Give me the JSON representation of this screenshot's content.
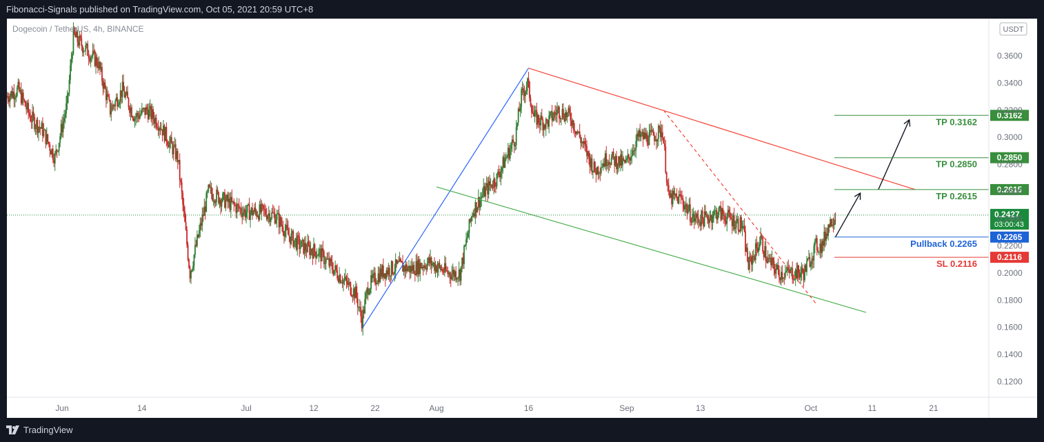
{
  "header": {
    "published": "Fibonacci-Signals published on TradingView.com, Oct 05, 2021 20:59 UTC+8"
  },
  "symbol": {
    "name": "Dogecoin / TetherUS, 4h, BINANCE"
  },
  "currency": "USDT",
  "footer": {
    "brand": "TradingView"
  },
  "colors": {
    "background": "#ffffff",
    "up": "#26a69a",
    "up_candle": "#2e7d32",
    "down": "#c62828",
    "tp": "#388e3c",
    "pullback": "#1e63d6",
    "sl": "#e53935",
    "trend_blue": "#2962ff",
    "channel_red": "#f44336",
    "channel_green": "#4caf50",
    "last_price": "#1b8a3c"
  },
  "chart_data": {
    "type": "candlestick",
    "title": "Dogecoin / TetherUS, 4h, BINANCE",
    "y_axis": {
      "ticks": [
        "0.3600",
        "0.3400",
        "0.3200",
        "0.3000",
        "0.2800",
        "0.2600",
        "0.2400",
        "0.2200",
        "0.2000",
        "0.1800",
        "0.1600",
        "0.1400",
        "0.1200"
      ],
      "range": [
        0.1085,
        0.3875
      ]
    },
    "x_axis": {
      "ticks": [
        {
          "label": "Jun",
          "date": "2021-06-01"
        },
        {
          "label": "14",
          "date": "2021-06-14"
        },
        {
          "label": "Jul",
          "date": "2021-07-01"
        },
        {
          "label": "12",
          "date": "2021-07-12"
        },
        {
          "label": "22",
          "date": "2021-07-22"
        },
        {
          "label": "Aug",
          "date": "2021-08-01"
        },
        {
          "label": "16",
          "date": "2021-08-16"
        },
        {
          "label": "Sep",
          "date": "2021-09-01"
        },
        {
          "label": "13",
          "date": "2021-09-13"
        },
        {
          "label": "Oct",
          "date": "2021-10-01"
        },
        {
          "label": "11",
          "date": "2021-10-11"
        },
        {
          "label": "21",
          "date": "2021-10-21"
        }
      ],
      "range": [
        "2021-05-23",
        "2021-10-30"
      ]
    },
    "price_path": [
      {
        "date": "2021-05-23",
        "price": 0.33
      },
      {
        "date": "2021-05-25",
        "price": 0.335
      },
      {
        "date": "2021-05-27",
        "price": 0.315
      },
      {
        "date": "2021-05-29",
        "price": 0.305
      },
      {
        "date": "2021-05-31",
        "price": 0.285
      },
      {
        "date": "2021-06-02",
        "price": 0.325
      },
      {
        "date": "2021-06-03",
        "price": 0.375
      },
      {
        "date": "2021-06-05",
        "price": 0.365
      },
      {
        "date": "2021-06-07",
        "price": 0.355
      },
      {
        "date": "2021-06-09",
        "price": 0.32
      },
      {
        "date": "2021-06-11",
        "price": 0.335
      },
      {
        "date": "2021-06-13",
        "price": 0.315
      },
      {
        "date": "2021-06-15",
        "price": 0.32
      },
      {
        "date": "2021-06-17",
        "price": 0.31
      },
      {
        "date": "2021-06-20",
        "price": 0.285
      },
      {
        "date": "2021-06-22",
        "price": 0.2
      },
      {
        "date": "2021-06-23",
        "price": 0.22
      },
      {
        "date": "2021-06-25",
        "price": 0.26
      },
      {
        "date": "2021-06-27",
        "price": 0.255
      },
      {
        "date": "2021-06-29",
        "price": 0.25
      },
      {
        "date": "2021-07-01",
        "price": 0.245
      },
      {
        "date": "2021-07-04",
        "price": 0.245
      },
      {
        "date": "2021-07-06",
        "price": 0.242
      },
      {
        "date": "2021-07-08",
        "price": 0.228
      },
      {
        "date": "2021-07-10",
        "price": 0.22
      },
      {
        "date": "2021-07-13",
        "price": 0.215
      },
      {
        "date": "2021-07-16",
        "price": 0.2
      },
      {
        "date": "2021-07-19",
        "price": 0.185
      },
      {
        "date": "2021-07-20",
        "price": 0.165
      },
      {
        "date": "2021-07-21",
        "price": 0.19
      },
      {
        "date": "2021-07-23",
        "price": 0.2
      },
      {
        "date": "2021-07-26",
        "price": 0.205
      },
      {
        "date": "2021-07-28",
        "price": 0.203
      },
      {
        "date": "2021-07-31",
        "price": 0.208
      },
      {
        "date": "2021-08-03",
        "price": 0.2
      },
      {
        "date": "2021-08-05",
        "price": 0.2
      },
      {
        "date": "2021-08-07",
        "price": 0.245
      },
      {
        "date": "2021-08-09",
        "price": 0.26
      },
      {
        "date": "2021-08-11",
        "price": 0.27
      },
      {
        "date": "2021-08-13",
        "price": 0.29
      },
      {
        "date": "2021-08-14",
        "price": 0.3
      },
      {
        "date": "2021-08-15",
        "price": 0.33
      },
      {
        "date": "2021-08-16",
        "price": 0.34
      },
      {
        "date": "2021-08-17",
        "price": 0.315
      },
      {
        "date": "2021-08-19",
        "price": 0.31
      },
      {
        "date": "2021-08-21",
        "price": 0.32
      },
      {
        "date": "2021-08-23",
        "price": 0.315
      },
      {
        "date": "2021-08-25",
        "price": 0.295
      },
      {
        "date": "2021-08-27",
        "price": 0.275
      },
      {
        "date": "2021-08-29",
        "price": 0.285
      },
      {
        "date": "2021-09-01",
        "price": 0.28
      },
      {
        "date": "2021-09-03",
        "price": 0.3
      },
      {
        "date": "2021-09-05",
        "price": 0.3
      },
      {
        "date": "2021-09-07",
        "price": 0.305
      },
      {
        "date": "2021-09-08",
        "price": 0.255
      },
      {
        "date": "2021-09-10",
        "price": 0.255
      },
      {
        "date": "2021-09-12",
        "price": 0.24
      },
      {
        "date": "2021-09-14",
        "price": 0.24
      },
      {
        "date": "2021-09-16",
        "price": 0.245
      },
      {
        "date": "2021-09-18",
        "price": 0.24
      },
      {
        "date": "2021-09-20",
        "price": 0.235
      },
      {
        "date": "2021-09-21",
        "price": 0.205
      },
      {
        "date": "2021-09-23",
        "price": 0.225
      },
      {
        "date": "2021-09-24",
        "price": 0.21
      },
      {
        "date": "2021-09-26",
        "price": 0.2
      },
      {
        "date": "2021-09-28",
        "price": 0.2
      },
      {
        "date": "2021-09-30",
        "price": 0.2
      },
      {
        "date": "2021-10-02",
        "price": 0.22
      },
      {
        "date": "2021-10-03",
        "price": 0.22
      },
      {
        "date": "2021-10-04",
        "price": 0.235
      },
      {
        "date": "2021-10-05",
        "price": 0.2427
      }
    ],
    "horizontal_levels": [
      {
        "name": "TP",
        "label": "TP 0.3162",
        "tag": "0.3162",
        "value": 0.3162,
        "color": "#388e3c"
      },
      {
        "name": "TP",
        "label": "TP 0.2850",
        "tag": "0.2850",
        "value": 0.285,
        "color": "#388e3c"
      },
      {
        "name": "TP",
        "label": "TP 0.2615",
        "tag": "0.2615",
        "value": 0.2615,
        "color": "#388e3c"
      },
      {
        "name": "Pullback",
        "label": "Pullback 0.2265",
        "tag": "0.2265",
        "value": 0.2265,
        "color": "#1e63d6"
      },
      {
        "name": "SL",
        "label": "SL 0.2116",
        "tag": "0.2116",
        "value": 0.2116,
        "color": "#e53935"
      }
    ],
    "last_price": {
      "value": 0.2427,
      "label": "0.2427",
      "countdown": "03:00:43"
    },
    "trendlines": [
      {
        "type": "blue",
        "from": {
          "date": "2021-07-20",
          "price": 0.16
        },
        "to": {
          "date": "2021-08-16",
          "price": 0.351
        }
      },
      {
        "type": "red_channel",
        "from": {
          "date": "2021-08-16",
          "price": 0.351
        },
        "to": {
          "date": "2021-10-18",
          "price": 0.2615
        }
      },
      {
        "type": "green_channel",
        "from": {
          "date": "2021-08-01",
          "price": 0.2635
        },
        "to": {
          "date": "2021-10-10",
          "price": 0.171
        }
      },
      {
        "type": "red_dashed",
        "from": {
          "date": "2021-09-07",
          "price": 0.32
        },
        "to": {
          "date": "2021-10-02",
          "price": 0.1765
        }
      }
    ],
    "arrows": [
      {
        "from": {
          "date": "2021-10-05",
          "price": 0.2265
        },
        "to": {
          "date": "2021-10-09",
          "price": 0.2585
        }
      },
      {
        "from": {
          "date": "2021-10-12",
          "price": 0.2615
        },
        "to": {
          "date": "2021-10-17",
          "price": 0.3125
        }
      }
    ]
  }
}
